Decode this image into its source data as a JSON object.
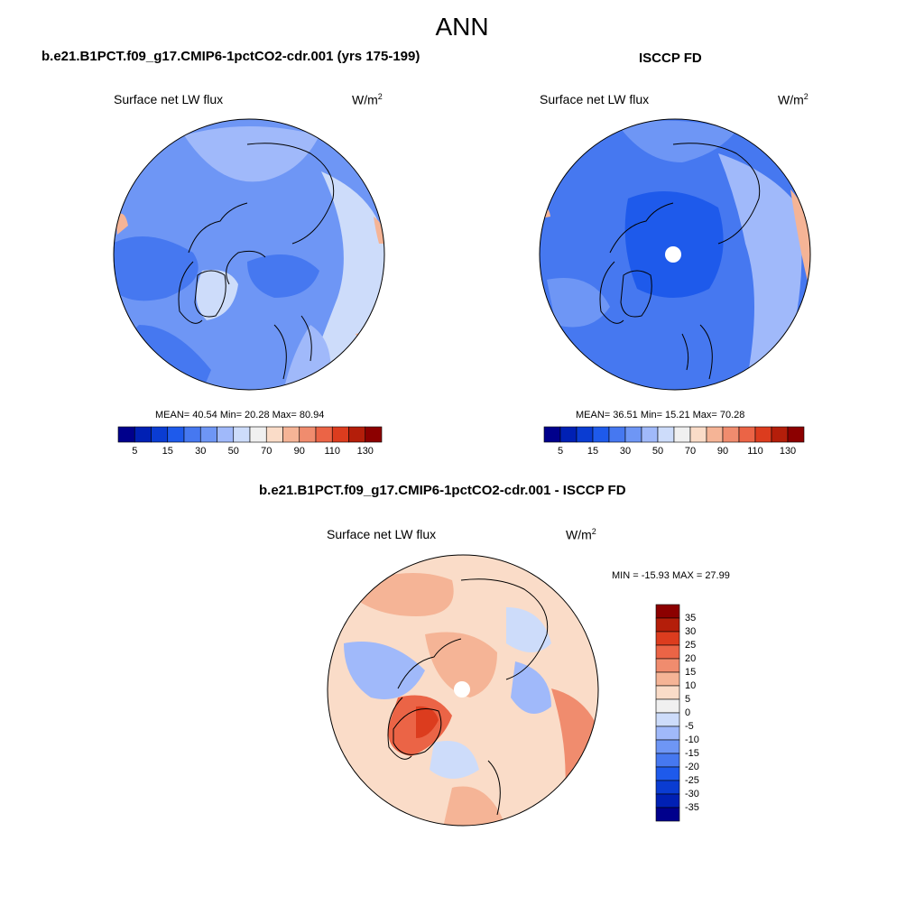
{
  "title": "ANN",
  "colors": {
    "land_line": "#000000",
    "map_border": "#000000",
    "abs_palette": [
      "#00008c",
      "#0020b4",
      "#0a3cd2",
      "#1e5aeb",
      "#4678f0",
      "#6e96f5",
      "#a0b9fa",
      "#cddcfa",
      "#f0f0f0",
      "#fadcc8",
      "#f5b496",
      "#f08c6e",
      "#eb6446",
      "#dc3c1e",
      "#b41e0a",
      "#8c0000"
    ],
    "diff_palette": [
      "#00008c",
      "#0020b4",
      "#0a3cd2",
      "#1e5aeb",
      "#4678f0",
      "#6e96f5",
      "#a0b9fa",
      "#cddcfa",
      "#f0f0f0",
      "#fadcc8",
      "#f5b496",
      "#f08c6e",
      "#eb6446",
      "#dc3c1e",
      "#b41e0a",
      "#8c0000"
    ]
  },
  "panels": [
    {
      "id": "model",
      "title": "b.e21.B1PCT.f09_g17.CMIP6-1pctCO2-cdr.001 (yrs 175-199)",
      "variable": "Surface net LW flux",
      "units_base": "W/m",
      "units_exp": "2",
      "stats": "MEAN=  40.54  Min=  20.28  Max=  80.94",
      "colorbar_ticks": [
        "5",
        "15",
        "30",
        "50",
        "70",
        "90",
        "110",
        "130"
      ]
    },
    {
      "id": "obs",
      "title": "ISCCP FD",
      "variable": "Surface net LW flux",
      "units_base": "W/m",
      "units_exp": "2",
      "stats": "MEAN=  36.51  Min=  15.21  Max=  70.28",
      "colorbar_ticks": [
        "5",
        "15",
        "30",
        "50",
        "70",
        "90",
        "110",
        "130"
      ]
    },
    {
      "id": "diff",
      "title": "b.e21.B1PCT.f09_g17.CMIP6-1pctCO2-cdr.001 - ISCCP FD",
      "variable": "Surface net LW flux",
      "units_base": "W/m",
      "units_exp": "2",
      "stats": "MIN = -15.93 MAX =  27.99",
      "colorbar_ticks": [
        "35",
        "30",
        "25",
        "20",
        "15",
        "10",
        "5",
        "0",
        "-5",
        "-10",
        "-15",
        "-20",
        "-25",
        "-30",
        "-35"
      ]
    }
  ]
}
